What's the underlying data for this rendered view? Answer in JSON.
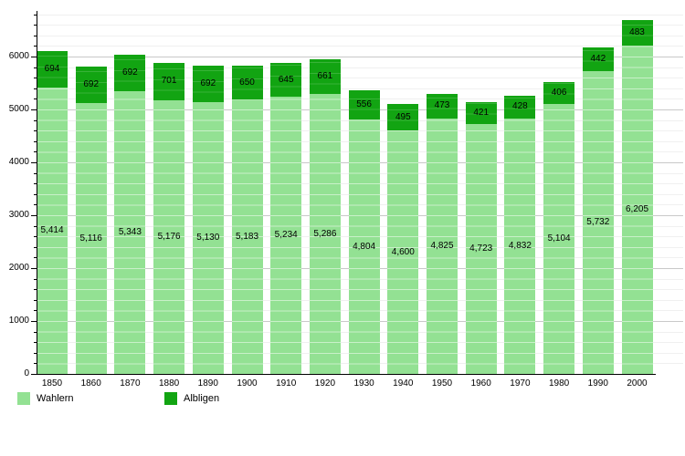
{
  "chart_data": {
    "type": "bar",
    "stacked": true,
    "categories": [
      "1850",
      "1860",
      "1870",
      "1880",
      "1890",
      "1900",
      "1910",
      "1920",
      "1930",
      "1940",
      "1950",
      "1960",
      "1970",
      "1980",
      "1990",
      "2000"
    ],
    "series": [
      {
        "name": "Wahlern",
        "color": "#93e193",
        "values": [
          5414,
          5116,
          5343,
          5176,
          5130,
          5183,
          5234,
          5286,
          4804,
          4600,
          4825,
          4723,
          4832,
          5104,
          5732,
          6205
        ]
      },
      {
        "name": "Albligen",
        "color": "#12a412",
        "values": [
          694,
          692,
          692,
          701,
          692,
          650,
          645,
          661,
          556,
          495,
          473,
          421,
          428,
          406,
          442,
          483
        ]
      }
    ],
    "y_tick_labels": [
      "0",
      "1000",
      "2000",
      "3000",
      "4000",
      "5000",
      "6000"
    ],
    "y_ticks": [
      0,
      1000,
      2000,
      3000,
      4000,
      5000,
      6000
    ],
    "minor_tick_step": 200,
    "ylim": [
      0,
      6810
    ],
    "grid": true,
    "legend_position": "bottom",
    "legend": [
      {
        "label": "Wahlern",
        "color": "#93e193"
      },
      {
        "label": "Albligen",
        "color": "#12a412"
      }
    ],
    "axis_color": "#000000",
    "major_grid_color": "#c9c9c9",
    "minor_grid_color": "#f0f0f0"
  }
}
